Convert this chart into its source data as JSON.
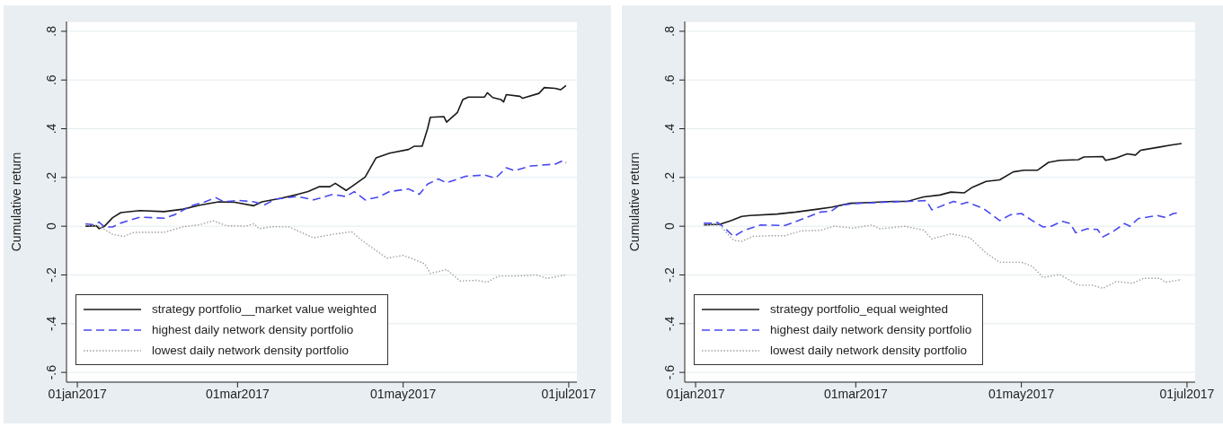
{
  "chart_data": [
    {
      "type": "line",
      "ylabel": "Cumulative return",
      "xlim": [
        "2016-12-28",
        "2017-07-04"
      ],
      "xticks": [
        {
          "value": "2017-01-01",
          "label": "01jan2017"
        },
        {
          "value": "2017-03-01",
          "label": "01mar2017"
        },
        {
          "value": "2017-05-01",
          "label": "01may2017"
        },
        {
          "value": "2017-07-01",
          "label": "01jul2017"
        }
      ],
      "ylim": [
        -0.64,
        0.84
      ],
      "yticks": [
        {
          "value": -0.6,
          "label": "-.6"
        },
        {
          "value": -0.4,
          "label": "-.4"
        },
        {
          "value": -0.2,
          "label": "-.2"
        },
        0,
        {
          "value": 0.2,
          "label": ".2"
        },
        {
          "value": 0.4,
          "label": ".4"
        },
        {
          "value": 0.6,
          "label": ".6"
        },
        {
          "value": 0.8,
          "label": ".8"
        }
      ],
      "grid": "y",
      "legend": "bottom left",
      "marker": "none",
      "series": [
        {
          "name": "strategy portfolio__market value weighted",
          "color": "#1a1a1a",
          "line_style": "solid",
          "x": [
            "2017-01-04",
            "2017-01-08",
            "2017-01-09",
            "2017-01-11",
            "2017-01-14",
            "2017-01-17",
            "2017-01-24",
            "2017-02-02",
            "2017-02-09",
            "2017-02-15",
            "2017-02-22",
            "2017-02-28",
            "2017-03-07",
            "2017-03-10",
            "2017-03-17",
            "2017-03-23",
            "2017-03-27",
            "2017-03-31",
            "2017-04-04",
            "2017-04-06",
            "2017-04-10",
            "2017-04-12",
            "2017-04-17",
            "2017-04-21",
            "2017-04-26",
            "2017-05-03",
            "2017-05-05",
            "2017-05-08",
            "2017-05-10",
            "2017-05-11",
            "2017-05-16",
            "2017-05-17",
            "2017-05-21",
            "2017-05-23",
            "2017-05-25",
            "2017-05-31",
            "2017-06-01",
            "2017-06-03",
            "2017-06-06",
            "2017-06-07",
            "2017-06-08",
            "2017-06-13",
            "2017-06-14",
            "2017-06-20",
            "2017-06-22",
            "2017-06-26",
            "2017-06-28",
            "2017-06-30"
          ],
          "values": [
            0.0,
            0.002,
            -0.01,
            0.0,
            0.035,
            0.056,
            0.064,
            0.06,
            0.07,
            0.086,
            0.1,
            0.098,
            0.084,
            0.1,
            0.115,
            0.13,
            0.142,
            0.162,
            0.162,
            0.176,
            0.147,
            0.162,
            0.202,
            0.28,
            0.3,
            0.315,
            0.328,
            0.328,
            0.4,
            0.447,
            0.45,
            0.427,
            0.467,
            0.52,
            0.53,
            0.53,
            0.548,
            0.528,
            0.52,
            0.51,
            0.54,
            0.533,
            0.525,
            0.545,
            0.569,
            0.566,
            0.56,
            0.577
          ]
        },
        {
          "name": "highest daily network density portfolio",
          "color": "#4848f0",
          "line_style": "dashed",
          "x": [
            "2017-01-04",
            "2017-01-07",
            "2017-01-09",
            "2017-01-11",
            "2017-01-14",
            "2017-01-17",
            "2017-01-24",
            "2017-02-02",
            "2017-02-06",
            "2017-02-12",
            "2017-02-17",
            "2017-02-21",
            "2017-02-24",
            "2017-03-01",
            "2017-03-07",
            "2017-03-11",
            "2017-03-15",
            "2017-03-23",
            "2017-03-29",
            "2017-04-05",
            "2017-04-10",
            "2017-04-13",
            "2017-04-17",
            "2017-04-22",
            "2017-04-26",
            "2017-05-03",
            "2017-05-07",
            "2017-05-10",
            "2017-05-14",
            "2017-05-17",
            "2017-05-24",
            "2017-05-31",
            "2017-06-04",
            "2017-06-08",
            "2017-06-11",
            "2017-06-17",
            "2017-06-26",
            "2017-06-29",
            "2017-06-30"
          ],
          "values": [
            0.01,
            0.006,
            0.017,
            -0.003,
            -0.003,
            0.013,
            0.037,
            0.033,
            0.048,
            0.084,
            0.1,
            0.117,
            0.1,
            0.106,
            0.1,
            0.088,
            0.111,
            0.122,
            0.108,
            0.13,
            0.122,
            0.142,
            0.108,
            0.12,
            0.142,
            0.153,
            0.131,
            0.173,
            0.194,
            0.178,
            0.205,
            0.21,
            0.197,
            0.24,
            0.228,
            0.247,
            0.255,
            0.27,
            0.26
          ]
        },
        {
          "name": "lowest daily network density portfolio",
          "color": "#a0a0a0",
          "line_style": "dotted",
          "x": [
            "2017-01-04",
            "2017-01-09",
            "2017-01-14",
            "2017-01-18",
            "2017-01-22",
            "2017-02-02",
            "2017-02-09",
            "2017-02-15",
            "2017-02-20",
            "2017-02-25",
            "2017-03-04",
            "2017-03-07",
            "2017-03-09",
            "2017-03-14",
            "2017-03-20",
            "2017-03-29",
            "2017-04-05",
            "2017-04-12",
            "2017-04-16",
            "2017-04-21",
            "2017-04-25",
            "2017-05-01",
            "2017-05-05",
            "2017-05-09",
            "2017-05-11",
            "2017-05-17",
            "2017-05-22",
            "2017-05-28",
            "2017-06-01",
            "2017-06-05",
            "2017-06-11",
            "2017-06-19",
            "2017-06-23",
            "2017-06-30"
          ],
          "values": [
            0.005,
            0.0,
            -0.033,
            -0.042,
            -0.025,
            -0.025,
            -0.002,
            0.006,
            0.022,
            0.002,
            0.0,
            0.01,
            -0.01,
            -0.002,
            -0.003,
            -0.048,
            -0.033,
            -0.023,
            -0.06,
            -0.1,
            -0.131,
            -0.12,
            -0.136,
            -0.155,
            -0.194,
            -0.178,
            -0.225,
            -0.222,
            -0.23,
            -0.205,
            -0.205,
            -0.2,
            -0.214,
            -0.2
          ]
        }
      ]
    },
    {
      "type": "line",
      "ylabel": "Cumulative return",
      "xlim": [
        "2016-12-28",
        "2017-07-04"
      ],
      "xticks": [
        {
          "value": "2017-01-01",
          "label": "01jan2017"
        },
        {
          "value": "2017-03-01",
          "label": "01mar2017"
        },
        {
          "value": "2017-05-01",
          "label": "01may2017"
        },
        {
          "value": "2017-07-01",
          "label": "01jul2017"
        }
      ],
      "ylim": [
        -0.64,
        0.84
      ],
      "yticks": [
        {
          "value": -0.6,
          "label": "-.6"
        },
        {
          "value": -0.4,
          "label": "-.4"
        },
        {
          "value": -0.2,
          "label": "-.2"
        },
        0,
        {
          "value": 0.2,
          "label": ".2"
        },
        {
          "value": 0.4,
          "label": ".4"
        },
        {
          "value": 0.6,
          "label": ".6"
        },
        {
          "value": 0.8,
          "label": ".8"
        }
      ],
      "grid": "y",
      "legend": "bottom left",
      "marker": "none",
      "series": [
        {
          "name": "strategy portfolio_equal weighted",
          "color": "#1a1a1a",
          "line_style": "solid",
          "x": [
            "2017-01-04",
            "2017-01-10",
            "2017-01-14",
            "2017-01-18",
            "2017-01-21",
            "2017-01-31",
            "2017-02-07",
            "2017-02-15",
            "2017-02-20",
            "2017-02-27",
            "2017-03-06",
            "2017-03-15",
            "2017-03-20",
            "2017-03-26",
            "2017-04-01",
            "2017-04-05",
            "2017-04-10",
            "2017-04-13",
            "2017-04-18",
            "2017-04-23",
            "2017-04-28",
            "2017-05-02",
            "2017-05-07",
            "2017-05-11",
            "2017-05-15",
            "2017-05-22",
            "2017-05-24",
            "2017-05-31",
            "2017-06-01",
            "2017-06-05",
            "2017-06-09",
            "2017-06-12",
            "2017-06-14",
            "2017-06-21",
            "2017-06-25",
            "2017-06-29"
          ],
          "values": [
            0.005,
            0.008,
            0.023,
            0.04,
            0.044,
            0.05,
            0.058,
            0.07,
            0.078,
            0.094,
            0.097,
            0.102,
            0.102,
            0.12,
            0.128,
            0.14,
            0.137,
            0.16,
            0.184,
            0.19,
            0.223,
            0.23,
            0.23,
            0.262,
            0.27,
            0.273,
            0.284,
            0.286,
            0.27,
            0.28,
            0.297,
            0.292,
            0.312,
            0.325,
            0.333,
            0.339
          ]
        },
        {
          "name": "highest daily network density portfolio",
          "color": "#4848f0",
          "line_style": "dashed",
          "x": [
            "2017-01-04",
            "2017-01-07",
            "2017-01-09",
            "2017-01-11",
            "2017-01-15",
            "2017-01-19",
            "2017-01-25",
            "2017-02-03",
            "2017-02-09",
            "2017-02-16",
            "2017-02-20",
            "2017-02-23",
            "2017-03-02",
            "2017-03-11",
            "2017-03-20",
            "2017-03-27",
            "2017-03-29",
            "2017-04-06",
            "2017-04-09",
            "2017-04-11",
            "2017-04-17",
            "2017-04-23",
            "2017-04-27",
            "2017-05-01",
            "2017-05-06",
            "2017-05-09",
            "2017-05-12",
            "2017-05-16",
            "2017-05-19",
            "2017-05-21",
            "2017-05-25",
            "2017-05-29",
            "2017-05-31",
            "2017-06-04",
            "2017-06-08",
            "2017-06-10",
            "2017-06-13",
            "2017-06-20",
            "2017-06-23",
            "2017-06-26",
            "2017-06-28"
          ],
          "values": [
            0.012,
            0.012,
            0.016,
            0.0,
            -0.042,
            -0.016,
            0.005,
            0.003,
            0.028,
            0.058,
            0.062,
            0.086,
            0.094,
            0.098,
            0.102,
            0.105,
            0.067,
            0.102,
            0.091,
            0.098,
            0.073,
            0.023,
            0.047,
            0.052,
            0.016,
            -0.003,
            0.0,
            0.02,
            0.011,
            -0.027,
            -0.011,
            -0.013,
            -0.044,
            -0.02,
            0.011,
            0.0,
            0.031,
            0.044,
            0.036,
            0.052,
            0.055
          ]
        },
        {
          "name": "lowest daily network density portfolio",
          "color": "#a0a0a0",
          "line_style": "dotted",
          "x": [
            "2017-01-04",
            "2017-01-10",
            "2017-01-15",
            "2017-01-18",
            "2017-01-22",
            "2017-01-28",
            "2017-02-03",
            "2017-02-09",
            "2017-02-16",
            "2017-02-21",
            "2017-02-28",
            "2017-03-07",
            "2017-03-10",
            "2017-03-19",
            "2017-03-26",
            "2017-03-29",
            "2017-04-05",
            "2017-04-12",
            "2017-04-18",
            "2017-04-23",
            "2017-05-01",
            "2017-05-05",
            "2017-05-09",
            "2017-05-15",
            "2017-05-22",
            "2017-05-27",
            "2017-05-31",
            "2017-06-05",
            "2017-06-11",
            "2017-06-15",
            "2017-06-21",
            "2017-06-23",
            "2017-06-29"
          ],
          "values": [
            0.008,
            0.003,
            -0.058,
            -0.062,
            -0.042,
            -0.039,
            -0.039,
            -0.019,
            -0.017,
            0.0,
            -0.008,
            0.005,
            -0.011,
            0.0,
            -0.016,
            -0.052,
            -0.031,
            -0.047,
            -0.11,
            -0.148,
            -0.148,
            -0.164,
            -0.211,
            -0.198,
            -0.242,
            -0.242,
            -0.255,
            -0.227,
            -0.234,
            -0.214,
            -0.214,
            -0.23,
            -0.219
          ]
        }
      ]
    }
  ]
}
